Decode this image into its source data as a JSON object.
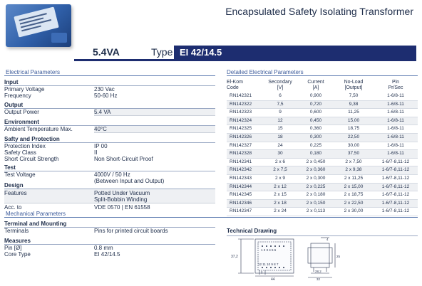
{
  "header": {
    "title": "Encapsulated Safety Isolating Transformer",
    "rating": "5.4VA",
    "type_label": "Type",
    "type_value": "EI 42/14.5"
  },
  "sections": {
    "electrical": "Electrical Parameters",
    "detailed": "Detailed Electrical Parameters",
    "mechanical": "Mechanical Parameters",
    "drawing": "Technical Drawing"
  },
  "electrical": {
    "input": {
      "title": "Input",
      "primary_voltage_k": "Primary Voltage",
      "primary_voltage_v": "230 Vac",
      "frequency_k": "Frequency",
      "frequency_v": "50-60 Hz"
    },
    "output": {
      "title": "Output",
      "power_k": "Output Power",
      "power_v": "5.4 VA"
    },
    "environment": {
      "title": "Environment",
      "temp_k": "Ambient Temperature Max.",
      "temp_v": "40°C"
    },
    "safety": {
      "title": "Safty and Protection",
      "protection_k": "Protection Index",
      "protection_v": "IP 00",
      "class_k": "Safety Class",
      "class_v": "II",
      "short_k": "Short Circuit Strength",
      "short_v": "Non Short-Circuit Proof"
    },
    "test": {
      "title": "Test",
      "voltage_k": "Test Voltage",
      "voltage_v1": "4000V / 50 Hz",
      "voltage_v2": "(Between Input and Output)"
    },
    "design": {
      "title": "Design",
      "features_k": "Features",
      "features_v1": "Potted Under Vacuum",
      "features_v2": "Split-Bobbin Winding",
      "acc_k": "Acc. to",
      "acc_v": "VDE 0570 | EN 61558"
    }
  },
  "mechanical": {
    "terminal": {
      "title": "Terminal and Mounting",
      "terminals_k": "Terminals",
      "terminals_v": "Pins for printed circuit boards"
    },
    "measures": {
      "title": "Measures",
      "pin_k": "Pin [Ø]",
      "pin_v": "0.8 mm",
      "core_k": "Core Type",
      "core_v": "EI 42/14.5"
    }
  },
  "detail_table": {
    "headers": [
      [
        "El-Kom",
        "Code"
      ],
      [
        "Secondary",
        "[V]"
      ],
      [
        "Current",
        "[A]"
      ],
      [
        "No-Load",
        "[Output]"
      ],
      [
        "Pin",
        "Pr/Sec"
      ]
    ],
    "rows": [
      [
        "RN142321",
        "6",
        "0,900",
        "7,50",
        "1-6/8-11"
      ],
      [
        "RN142322",
        "7,5",
        "0,720",
        "9,38",
        "1-6/8-11"
      ],
      [
        "RN142323",
        "9",
        "0,600",
        "11,25",
        "1-6/8-11"
      ],
      [
        "RN142324",
        "12",
        "0,450",
        "15,00",
        "1-6/8-11"
      ],
      [
        "RN142325",
        "15",
        "0,360",
        "18,75",
        "1-6/8-11"
      ],
      [
        "RN142326",
        "18",
        "0,300",
        "22,50",
        "1-6/8-11"
      ],
      [
        "RN142327",
        "24",
        "0,225",
        "30,00",
        "1-6/8-11"
      ],
      [
        "RN142328",
        "30",
        "0,180",
        "37,50",
        "1-6/8-11"
      ],
      [
        "RN142341",
        "2 x 6",
        "2 x 0,450",
        "2 x 7,50",
        "1-6/7-8,11-12"
      ],
      [
        "RN142342",
        "2 x 7,5",
        "2 x 0,360",
        "2 x 9,38",
        "1-6/7-8,11-12"
      ],
      [
        "RN142343",
        "2 x 9",
        "2 x 0,300",
        "2 x 11,25",
        "1-6/7-8,11-12"
      ],
      [
        "RN142344",
        "2 x 12",
        "2 x 0,225",
        "2 x 15,00",
        "1-6/7-8,11-12"
      ],
      [
        "RN142345",
        "2 x 15",
        "2 x 0,180",
        "2 x 18,75",
        "1-6/7-8,11-12"
      ],
      [
        "RN142346",
        "2 x 18",
        "2 x 0,150",
        "2 x 22,50",
        "1-6/7-8,11-12"
      ],
      [
        "RN142347",
        "2 x 24",
        "2 x 0,113",
        "2 x 30,00",
        "1-6/7-8,11-12"
      ]
    ]
  },
  "drawing": {
    "dim_height": "37,2",
    "dim_width": "44",
    "dim_pitch": "5",
    "dim_side_top": "4",
    "dim_side_right": "25",
    "dim_side_bottom": "28,2",
    "dim_side_total": "32",
    "pins_top": "1 2 3 4 5 6",
    "pins_bottom": "12 11 10 9 8 7"
  },
  "colors": {
    "navy": "#1d2d70",
    "section_text": "#3b5a9a",
    "row_shade": "#eef0f3",
    "photo_blue": "#2f5fa8"
  }
}
